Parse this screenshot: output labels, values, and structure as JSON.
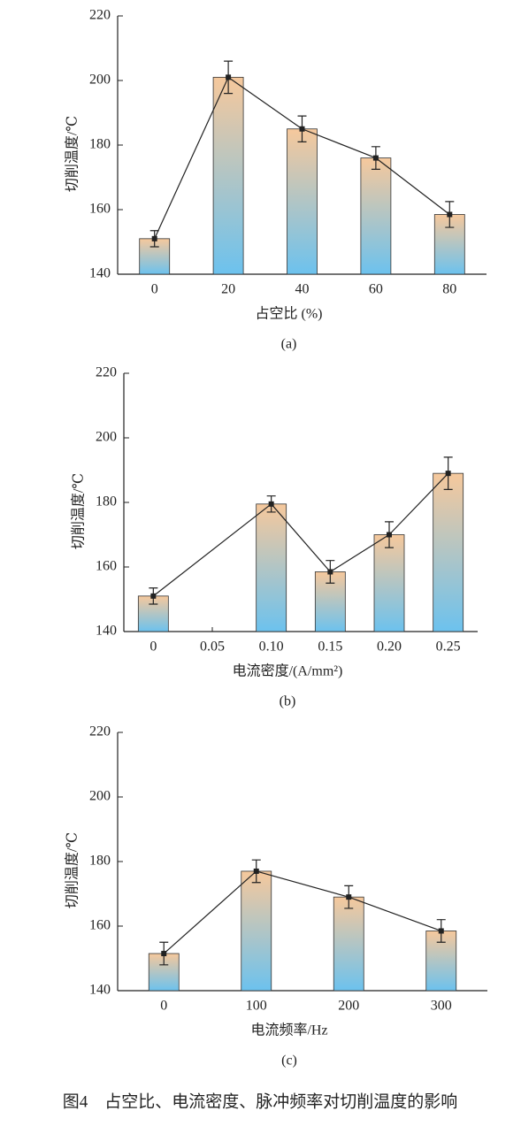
{
  "chart_data": [
    {
      "type": "bar",
      "xlabel": "占空比 (%)",
      "ylabel": "切削温度/℃",
      "sublabel": "(a)",
      "categories": [
        "0",
        "20",
        "40",
        "60",
        "80"
      ],
      "values": [
        151,
        201,
        185,
        176,
        158.5
      ],
      "errors": [
        2.5,
        5,
        4,
        3.5,
        4
      ],
      "ylim": [
        140,
        220
      ],
      "yticks": [
        140,
        160,
        180,
        200,
        220
      ],
      "gradient": [
        "#f6c89c",
        "#6cc2ee"
      ],
      "line_color": "#222222"
    },
    {
      "type": "bar",
      "xlabel": "电流密度/(A/mm²)",
      "ylabel": "切削温度/℃",
      "sublabel": "(b)",
      "categories": [
        "0",
        "0.05",
        "0.10",
        "0.15",
        "0.20",
        "0.25"
      ],
      "values": [
        151,
        null,
        179.5,
        158.5,
        170,
        189
      ],
      "errors": [
        2.5,
        null,
        2.5,
        3.5,
        4,
        5
      ],
      "ylim": [
        140,
        220
      ],
      "yticks": [
        140,
        160,
        180,
        200,
        220
      ],
      "gradient": [
        "#f6c89c",
        "#6cc2ee"
      ],
      "line_color": "#222222"
    },
    {
      "type": "bar",
      "xlabel": "电流频率/Hz",
      "ylabel": "切削温度/℃",
      "sublabel": "(c)",
      "categories": [
        "0",
        "100",
        "200",
        "300"
      ],
      "values": [
        151.5,
        177,
        169,
        158.5
      ],
      "errors": [
        3.5,
        3.5,
        3.5,
        3.5
      ],
      "ylim": [
        140,
        220
      ],
      "yticks": [
        140,
        160,
        180,
        200,
        220
      ],
      "gradient": [
        "#f6c89c",
        "#6cc2ee"
      ],
      "line_color": "#222222"
    }
  ],
  "caption": "图4　占空比、电流密度、脉冲频率对切削温度的影响"
}
